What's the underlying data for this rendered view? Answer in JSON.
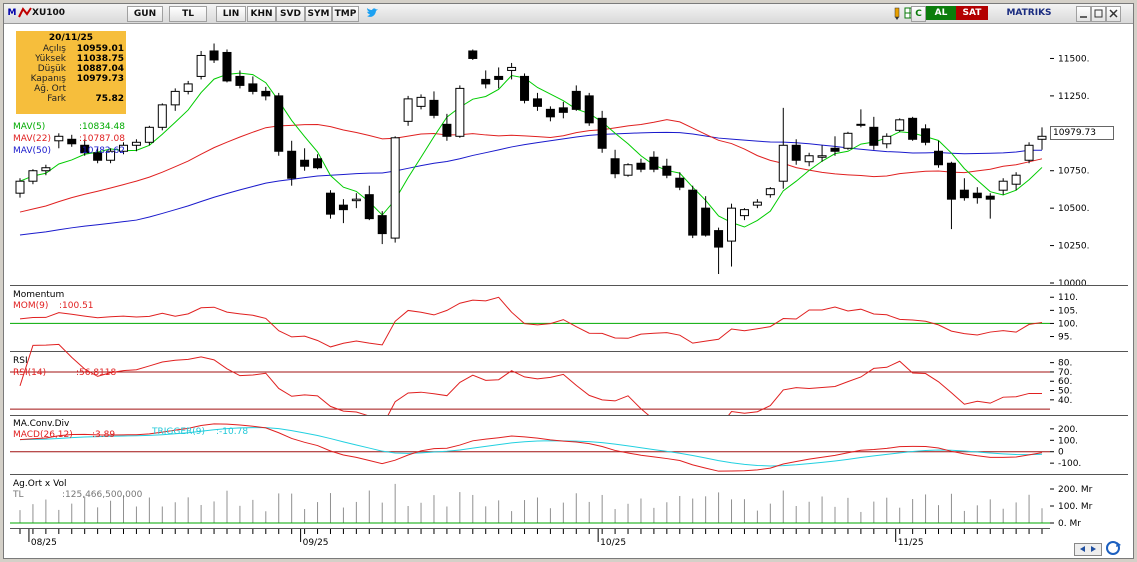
{
  "toolbar": {
    "symbol": "XU100",
    "menu_label": "M",
    "buttons": [
      "GUN",
      "TL",
      "LIN",
      "KHN",
      "SVD",
      "SYM",
      "TMP"
    ],
    "right_items": [
      "C",
      "AL",
      "SAT",
      "MATRIKS"
    ],
    "colors": {
      "al": "#0b7d0b",
      "sat": "#b30000"
    }
  },
  "info_box": {
    "date": "20/11/25",
    "rows": [
      {
        "label": "Açılış",
        "value": "10959.01"
      },
      {
        "label": "Yüksek",
        "value": "11038.75"
      },
      {
        "label": "Düşük",
        "value": "10887.04"
      },
      {
        "label": "Kapanış",
        "value": "10979.73"
      },
      {
        "label": "Ağ. Ort",
        "value": ""
      },
      {
        "label": "Fark",
        "value": "75.82"
      }
    ]
  },
  "legend": {
    "mav5": "MAV(5)",
    "mav5_val": ":10834.48",
    "mav22": "MAV(22)",
    "mav22_val": ":10787.08",
    "mav50": "MAV(50)",
    "mav50_val": ":10782.62"
  },
  "price_tag": "10979.73",
  "panels": {
    "momentum": {
      "title": "Momentum",
      "label": "MOM(9)",
      "value": ":100.51"
    },
    "rsi": {
      "title": "RSI",
      "label": "RSI(14)",
      "value": ":56.8118"
    },
    "macd": {
      "title": "MA.Conv.Div",
      "label": "MACD(26,12)",
      "value": ":3.89",
      "trigger_label": "TRIGGER(9)",
      "trigger_value": ":-10.78"
    },
    "volume": {
      "title": "Ag.Ort x Vol",
      "label": "TL",
      "value": ":125,466,500,000"
    }
  },
  "axes": {
    "price_ticks": [
      "11500.",
      "11250.",
      "11000.",
      "10750.",
      "10500.",
      "10250.",
      "10000."
    ],
    "mom_ticks": [
      "110.",
      "105.",
      "100.",
      "95."
    ],
    "rsi_ticks": [
      "80.",
      "70.",
      "60.",
      "50.",
      "40."
    ],
    "macd_ticks": [
      "200.",
      "100.",
      "0",
      "-100."
    ],
    "vol_ticks": [
      "200. Mr",
      "100. Mr",
      "0. Mr"
    ],
    "date_ticks": [
      "08/25",
      "09/25",
      "10/25",
      "11/25"
    ]
  },
  "chart_data": {
    "type": "candlestick",
    "ylim": [
      10000,
      11650
    ],
    "candles": [
      [
        10600,
        10700,
        10570,
        10680
      ],
      [
        10680,
        10760,
        10660,
        10750
      ],
      [
        10750,
        10790,
        10720,
        10770
      ],
      [
        10950,
        11000,
        10900,
        10980
      ],
      [
        10960,
        10990,
        10910,
        10930
      ],
      [
        10920,
        10960,
        10850,
        10870
      ],
      [
        10870,
        10900,
        10800,
        10820
      ],
      [
        10820,
        10900,
        10800,
        10880
      ],
      [
        10880,
        10940,
        10860,
        10920
      ],
      [
        10920,
        10960,
        10880,
        10940
      ],
      [
        10940,
        11050,
        10920,
        11040
      ],
      [
        11040,
        11200,
        11020,
        11190
      ],
      [
        11190,
        11300,
        11150,
        11280
      ],
      [
        11280,
        11350,
        11260,
        11330
      ],
      [
        11380,
        11550,
        11360,
        11520
      ],
      [
        11550,
        11600,
        11470,
        11490
      ],
      [
        11540,
        11560,
        11340,
        11350
      ],
      [
        11380,
        11420,
        11300,
        11320
      ],
      [
        11330,
        11380,
        11260,
        11280
      ],
      [
        11280,
        11310,
        11220,
        11250
      ],
      [
        11250,
        11270,
        10850,
        10880
      ],
      [
        10880,
        10950,
        10650,
        10700
      ],
      [
        10820,
        10900,
        10750,
        10780
      ],
      [
        10830,
        10860,
        10760,
        10770
      ],
      [
        10600,
        10620,
        10430,
        10460
      ],
      [
        10520,
        10560,
        10400,
        10490
      ],
      [
        10550,
        10600,
        10500,
        10560
      ],
      [
        10590,
        10650,
        10420,
        10430
      ],
      [
        10450,
        10480,
        10260,
        10330
      ],
      [
        10300,
        10980,
        10270,
        10970
      ],
      [
        11080,
        11250,
        11050,
        11230
      ],
      [
        11180,
        11260,
        11160,
        11240
      ],
      [
        11220,
        11280,
        11100,
        11120
      ],
      [
        11060,
        11130,
        10950,
        10980
      ],
      [
        10980,
        11320,
        10970,
        11300
      ],
      [
        11550,
        11560,
        11490,
        11500
      ],
      [
        11360,
        11420,
        11300,
        11330
      ],
      [
        11380,
        11440,
        11300,
        11360
      ],
      [
        11420,
        11470,
        11360,
        11440
      ],
      [
        11380,
        11400,
        11200,
        11220
      ],
      [
        11230,
        11270,
        11150,
        11180
      ],
      [
        11160,
        11180,
        11080,
        11110
      ],
      [
        11170,
        11210,
        11100,
        11140
      ],
      [
        11280,
        11320,
        11150,
        11160
      ],
      [
        11250,
        11270,
        11050,
        11070
      ],
      [
        11100,
        11150,
        10870,
        10900
      ],
      [
        10830,
        10890,
        10700,
        10730
      ],
      [
        10720,
        10800,
        10710,
        10790
      ],
      [
        10800,
        10830,
        10740,
        10760
      ],
      [
        10840,
        10880,
        10740,
        10760
      ],
      [
        10780,
        10830,
        10700,
        10720
      ],
      [
        10700,
        10740,
        10620,
        10640
      ],
      [
        10620,
        10650,
        10300,
        10320
      ],
      [
        10500,
        10580,
        10310,
        10320
      ],
      [
        10350,
        10370,
        10060,
        10240
      ],
      [
        10280,
        10530,
        10110,
        10500
      ],
      [
        10450,
        10500,
        10420,
        10490
      ],
      [
        10520,
        10560,
        10500,
        10540
      ],
      [
        10590,
        10640,
        10570,
        10630
      ],
      [
        10680,
        11170,
        10630,
        10920
      ],
      [
        10920,
        10960,
        10790,
        10820
      ],
      [
        10810,
        10870,
        10780,
        10850
      ],
      [
        10840,
        10920,
        10810,
        10850
      ],
      [
        10900,
        10980,
        10850,
        10880
      ],
      [
        10900,
        11010,
        10890,
        11000
      ],
      [
        11060,
        11160,
        11040,
        11060
      ],
      [
        11040,
        11110,
        10890,
        10920
      ],
      [
        10930,
        11000,
        10900,
        10980
      ],
      [
        11020,
        11100,
        11010,
        11090
      ],
      [
        11100,
        11110,
        10950,
        10960
      ],
      [
        11030,
        11060,
        10920,
        10940
      ],
      [
        10880,
        10950,
        10770,
        10790
      ],
      [
        10800,
        10810,
        10360,
        10560
      ],
      [
        10620,
        10700,
        10550,
        10570
      ],
      [
        10600,
        10640,
        10530,
        10570
      ],
      [
        10580,
        10600,
        10430,
        10560
      ],
      [
        10620,
        10700,
        10590,
        10680
      ],
      [
        10660,
        10740,
        10620,
        10720
      ],
      [
        10820,
        10940,
        10800,
        10920
      ],
      [
        10960,
        11040,
        10890,
        10980
      ]
    ],
    "x_labels": [
      "08/25",
      "09/25",
      "10/25",
      "11/25"
    ],
    "colors": {
      "mav5": "#00cc00",
      "mav22": "#e02020",
      "mav50": "#1a1acc",
      "indicator": "#e02020",
      "trigger": "#22d0e0",
      "volume": "#909090",
      "ref_line": "#00aa00",
      "level_line": "#a01010"
    }
  }
}
